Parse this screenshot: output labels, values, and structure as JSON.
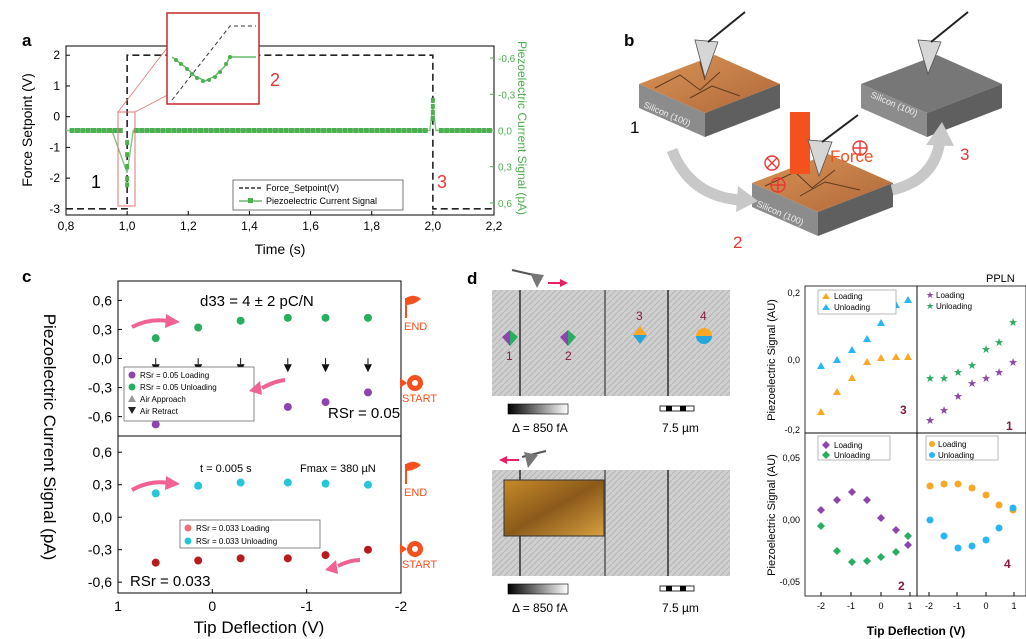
{
  "panels": {
    "a": {
      "letter": "a",
      "ylabel_left": "Force Setpoint (V)",
      "ylabel_right": "Piezoelectric Current Signal (pA)",
      "xlabel": "Time (s)",
      "x_ticks": [
        "0,8",
        "1,0",
        "1,2",
        "1,4",
        "1,6",
        "1,8",
        "2,0",
        "2,2"
      ],
      "y_ticks_left": [
        "2",
        "1",
        "0",
        "-1",
        "-2",
        "-3"
      ],
      "y_ticks_right": [
        "-0,6",
        "-0,3",
        "0,0",
        "0,3",
        "0,6"
      ],
      "region_labels": [
        "1",
        "2",
        "3"
      ],
      "legend": [
        "Force_Setpoint(V)",
        "Piezoelectric Current Signal"
      ]
    },
    "b": {
      "letter": "b",
      "substrate_label": "Silicon (100)",
      "force_label": "Force",
      "step_labels": [
        "1",
        "2",
        "3"
      ]
    },
    "c": {
      "letter": "c",
      "ylabel": "Piezoelectric Current Signal (pA)",
      "xlabel": "Tip Deflection (V)",
      "x_ticks": [
        "1",
        "0",
        "-1",
        "-2"
      ],
      "y_ticks": [
        "0,6",
        "0,3",
        "0,0",
        "-0,3",
        "-0,6"
      ],
      "top": {
        "annotation": "d33 = 4 ± 2 pC/N",
        "rsr_label": "RSr = 0.05",
        "legend": [
          "RSr = 0.05 Loading",
          "RSr = 0.05 Unloading",
          "Air Approach",
          "Air Retract"
        ],
        "end_label": "END",
        "start_label": "START"
      },
      "bottom": {
        "time_label": "t = 0.005 s",
        "fmax_label": "Fmax = 380 µN",
        "rsr_label": "RSr = 0.033",
        "legend": [
          "RSr = 0.033 Loading",
          "RSr = 0.033 Unloading"
        ],
        "end_label": "END",
        "start_label": "START"
      }
    },
    "d": {
      "letter": "d",
      "top_colorbar": "Δ = 850 fA",
      "top_scalebar": "7.5 µm",
      "bottom_colorbar": "Δ = 850 fA",
      "bottom_scalebar": "7.5 µm",
      "map_markers": [
        "1",
        "2",
        "3",
        "4"
      ],
      "ppln_label": "PPLN",
      "ylabel_top": "Piezoelectric Signal (AU)",
      "ylabel_bottom": "Piezoelectric Signal (AU)",
      "xlabel": "Tip Deflection (V)",
      "x_ticks": [
        "-2",
        "-1",
        "0",
        "1",
        "-2",
        "-1",
        "0",
        "1"
      ],
      "y_ticks_top": [
        "0,2",
        "0,0",
        "-0,2"
      ],
      "y_ticks_bottom": [
        "0,05",
        "0,00",
        "-0,05"
      ],
      "subplot_numbers": [
        "3",
        "1",
        "2",
        "4"
      ],
      "subplot_legends": [
        [
          "Loading",
          "Unloading"
        ],
        [
          "Loading",
          "Unloading"
        ],
        [
          "Loading",
          "Unloading"
        ],
        [
          "Loading",
          "Unloading"
        ]
      ]
    }
  },
  "chart_data": [
    {
      "type": "line",
      "panel": "a",
      "xlabel": "Time (s)",
      "ylabel": "Force Setpoint (V)",
      "xlim": [
        0.8,
        2.2
      ],
      "ylim": [
        -3.2,
        2.3
      ],
      "series": [
        {
          "name": "Force_Setpoint(V)",
          "x": [
            0.8,
            1.0,
            1.0,
            2.0,
            2.0,
            2.2
          ],
          "y": [
            -3,
            -3,
            2,
            2,
            -3,
            -3
          ]
        }
      ]
    },
    {
      "type": "line",
      "panel": "a",
      "xlabel": "Time (s)",
      "ylabel": "Piezoelectric Current Signal (pA)",
      "xlim": [
        0.8,
        2.2
      ],
      "ylim": [
        0.7,
        -0.7
      ],
      "series": [
        {
          "name": "Piezoelectric Current Signal",
          "x": [
            0.8,
            0.95,
            1.0,
            1.02,
            1.5,
            1.99,
            2.0,
            2.01,
            2.2
          ],
          "y": [
            0.0,
            0.0,
            0.35,
            0.0,
            0.0,
            0.0,
            -0.2,
            0.0,
            0.0
          ]
        }
      ]
    },
    {
      "type": "scatter",
      "panel": "c-top",
      "xlabel": "Tip Deflection (V)",
      "ylabel": "Piezoelectric Current Signal (pA)",
      "xlim": [
        1,
        -2
      ],
      "ylim": [
        -0.8,
        0.8
      ],
      "series": [
        {
          "name": "RSr = 0.05 Loading",
          "x": [
            0.6,
            0.15,
            -0.3,
            -0.8,
            -1.2,
            -1.65
          ],
          "y": [
            -0.68,
            -0.6,
            -0.57,
            -0.5,
            -0.45,
            -0.35
          ]
        },
        {
          "name": "RSr = 0.05 Unloading",
          "x": [
            0.6,
            0.15,
            -0.3,
            -0.8,
            -1.2,
            -1.65
          ],
          "y": [
            0.21,
            0.32,
            0.39,
            0.42,
            0.42,
            0.42
          ]
        },
        {
          "name": "Air Retract",
          "x": [
            0.6,
            0.15,
            -0.3,
            -0.8,
            -1.2,
            -1.65
          ],
          "y": [
            -0.1,
            -0.1,
            -0.1,
            -0.1,
            -0.1,
            -0.1
          ]
        }
      ]
    },
    {
      "type": "scatter",
      "panel": "c-bottom",
      "xlabel": "Tip Deflection (V)",
      "ylabel": "Piezoelectric Current Signal (pA)",
      "xlim": [
        1,
        -2
      ],
      "ylim": [
        -0.7,
        0.75
      ],
      "series": [
        {
          "name": "RSr = 0.033 Loading",
          "x": [
            0.6,
            0.15,
            -0.3,
            -0.8,
            -1.2,
            -1.65
          ],
          "y": [
            -0.42,
            -0.4,
            -0.38,
            -0.38,
            -0.35,
            -0.3
          ]
        },
        {
          "name": "RSr = 0.033 Unloading",
          "x": [
            0.6,
            0.15,
            -0.3,
            -0.8,
            -1.2,
            -1.65
          ],
          "y": [
            0.22,
            0.29,
            0.32,
            0.32,
            0.31,
            0.3
          ]
        }
      ]
    }
  ]
}
